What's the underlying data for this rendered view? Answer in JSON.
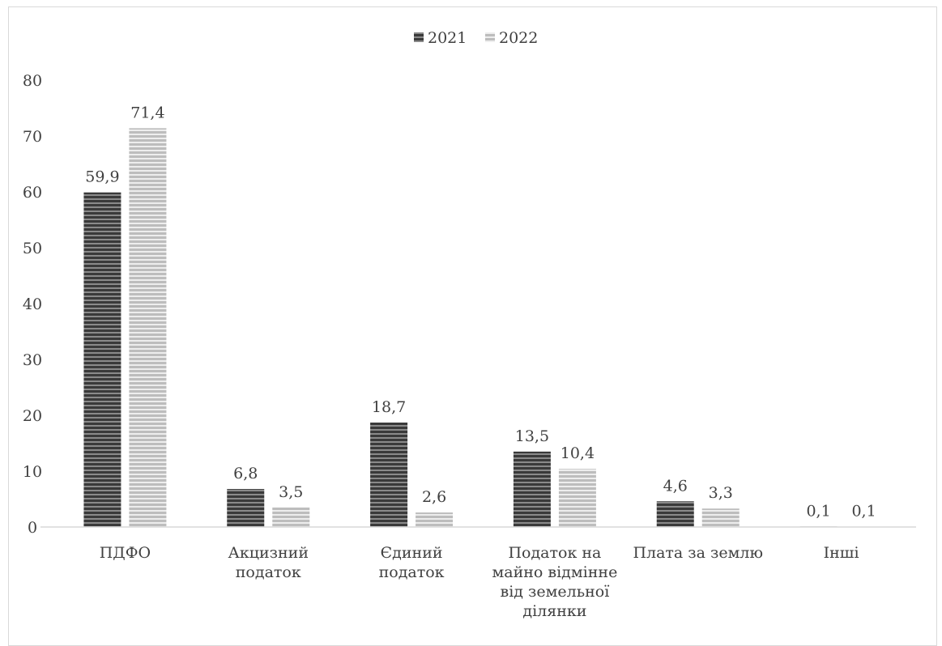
{
  "chart_data": {
    "type": "bar",
    "title": "",
    "xlabel": "",
    "ylabel": "",
    "ylim": [
      0,
      80
    ],
    "yticks": [
      0,
      10,
      20,
      30,
      40,
      50,
      60,
      70,
      80
    ],
    "grid": false,
    "legend_position": "top-center",
    "categories": [
      [
        "ПДФО"
      ],
      [
        "Акцизний",
        "податок"
      ],
      [
        "Єдиний",
        "податок"
      ],
      [
        "Податок на",
        "майно відмінне",
        "від земельної",
        "ділянки"
      ],
      [
        "Плата за землю"
      ],
      [
        "Інші"
      ]
    ],
    "series": [
      {
        "name": "2021",
        "values": [
          59.9,
          6.8,
          18.7,
          13.5,
          4.6,
          0.1
        ],
        "labels": [
          "59,9",
          "6,8",
          "18,7",
          "13,5",
          "4,6",
          "0,1"
        ],
        "color": "#5a5a5a"
      },
      {
        "name": "2022",
        "values": [
          71.4,
          3.5,
          2.6,
          10.4,
          3.3,
          0.1
        ],
        "labels": [
          "71,4",
          "3,5",
          "2,6",
          "10,4",
          "3,3",
          "0,1"
        ],
        "color": "#c8c8c8"
      }
    ]
  }
}
